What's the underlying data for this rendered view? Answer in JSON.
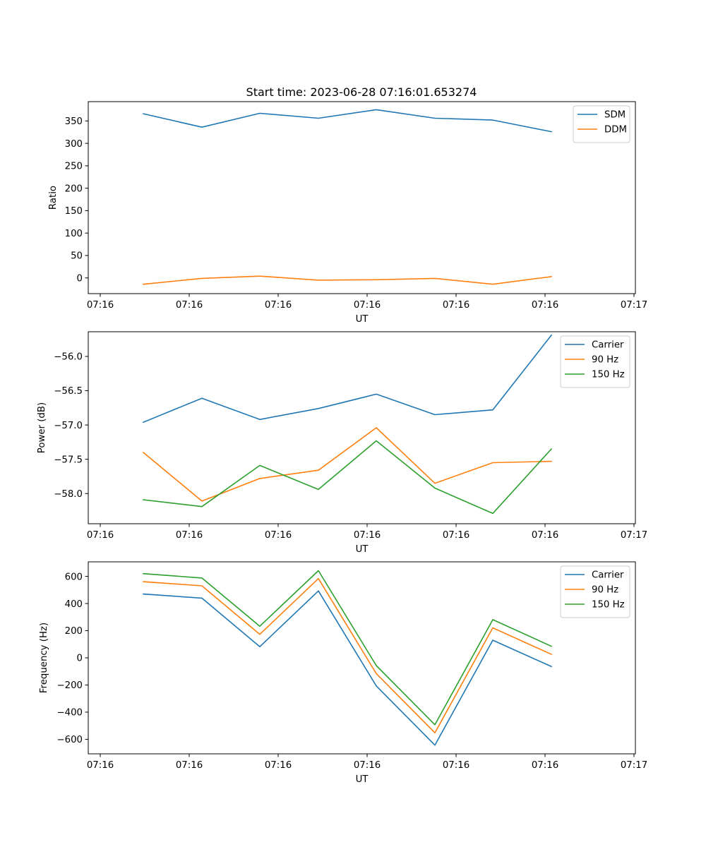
{
  "figure": {
    "title": "Start time: 2023-06-28 07:16:01.653274"
  },
  "chart_data": [
    {
      "type": "line",
      "title": "Start time: 2023-06-28 07:16:01.653274",
      "xlabel": "UT",
      "ylabel": "Ratio",
      "x_tick_labels": [
        "07:16",
        "07:16",
        "07:16",
        "07:16",
        "07:16",
        "07:16",
        "07:17"
      ],
      "x_point_count": 8,
      "yticks": [
        0,
        50,
        100,
        150,
        200,
        250,
        300,
        350
      ],
      "ylim": [
        -35,
        393
      ],
      "legend_position": "top-right",
      "grid": false,
      "series": [
        {
          "name": "SDM",
          "color": "#1f77b4",
          "values": [
            366,
            336,
            367,
            356,
            375,
            356,
            352,
            326
          ]
        },
        {
          "name": "DDM",
          "color": "#ff7f0e",
          "values": [
            -14,
            -1,
            4,
            -5,
            -4,
            -1,
            -14,
            3
          ]
        }
      ]
    },
    {
      "type": "line",
      "title": "",
      "xlabel": "UT",
      "ylabel": "Power (dB)",
      "x_tick_labels": [
        "07:16",
        "07:16",
        "07:16",
        "07:16",
        "07:16",
        "07:16",
        "07:17"
      ],
      "x_point_count": 8,
      "yticks": [
        -58.0,
        -57.5,
        -57.0,
        -56.5,
        -56.0
      ],
      "ytick_labels": [
        "−58.0",
        "−57.5",
        "−57.0",
        "−56.5",
        "−56.0"
      ],
      "ylim": [
        -58.44,
        -55.64
      ],
      "legend_position": "top-right",
      "grid": false,
      "series": [
        {
          "name": "Carrier",
          "color": "#1f77b4",
          "values": [
            -56.96,
            -56.61,
            -56.92,
            -56.76,
            -56.55,
            -56.85,
            -56.78,
            -55.69
          ]
        },
        {
          "name": "90 Hz",
          "color": "#ff7f0e",
          "values": [
            -57.4,
            -58.11,
            -57.78,
            -57.66,
            -57.04,
            -57.85,
            -57.55,
            -57.53
          ]
        },
        {
          "name": "150 Hz",
          "color": "#2ca02c",
          "values": [
            -58.09,
            -58.19,
            -57.59,
            -57.94,
            -57.23,
            -57.92,
            -58.29,
            -57.35
          ]
        }
      ]
    },
    {
      "type": "line",
      "title": "",
      "xlabel": "UT",
      "ylabel": "Frequency (Hz)",
      "x_tick_labels": [
        "07:16",
        "07:16",
        "07:16",
        "07:16",
        "07:16",
        "07:16",
        "07:17"
      ],
      "x_point_count": 8,
      "yticks": [
        -600,
        -400,
        -200,
        0,
        200,
        400,
        600
      ],
      "ytick_labels": [
        "−600",
        "−400",
        "−200",
        "0",
        "200",
        "400",
        "600"
      ],
      "ylim": [
        -707,
        707
      ],
      "legend_position": "top-right",
      "grid": false,
      "series": [
        {
          "name": "Carrier",
          "color": "#1f77b4",
          "values": [
            470,
            440,
            82,
            493,
            -207,
            -643,
            130,
            -64
          ]
        },
        {
          "name": "90 Hz",
          "color": "#ff7f0e",
          "values": [
            561,
            530,
            173,
            584,
            -116,
            -552,
            221,
            26
          ]
        },
        {
          "name": "150 Hz",
          "color": "#2ca02c",
          "values": [
            620,
            588,
            233,
            642,
            -57,
            -493,
            281,
            85
          ]
        }
      ]
    }
  ]
}
